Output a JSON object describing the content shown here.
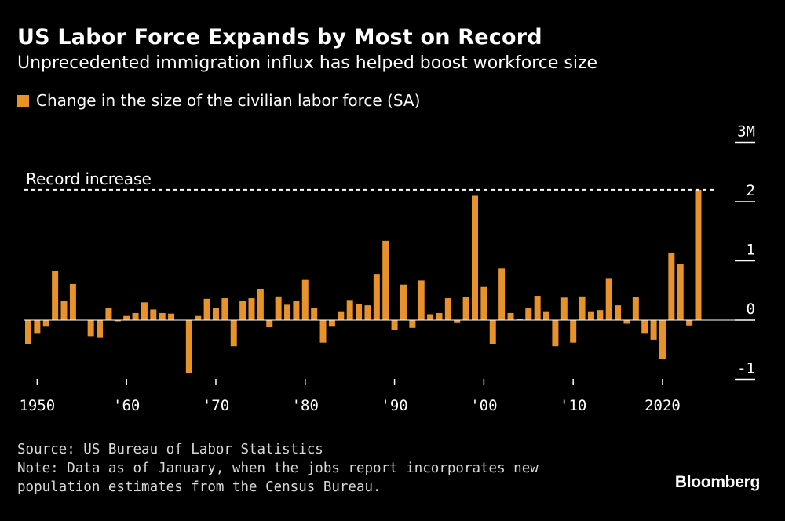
{
  "header": {
    "title": "US Labor Force Expands by Most on Record",
    "subtitle": "Unprecedented immigration influx has helped boost workforce size"
  },
  "legend": {
    "label": "Change in the size of the civilian labor force (SA)",
    "color": "#e8922b"
  },
  "footer": {
    "source": "Source: US Bureau of Labor Statistics",
    "note_line1": "Note: Data as of January, when the jobs report incorporates new",
    "note_line2": "population estimates from the Census Bureau.",
    "logo": "Bloomberg"
  },
  "chart_data": {
    "type": "bar",
    "x": [
      1949,
      1950,
      1951,
      1952,
      1953,
      1954,
      1955,
      1956,
      1957,
      1958,
      1959,
      1960,
      1961,
      1962,
      1963,
      1964,
      1965,
      1966,
      1967,
      1968,
      1969,
      1970,
      1971,
      1972,
      1973,
      1974,
      1975,
      1976,
      1977,
      1978,
      1979,
      1980,
      1981,
      1982,
      1983,
      1984,
      1985,
      1986,
      1987,
      1988,
      1989,
      1990,
      1991,
      1992,
      1993,
      1994,
      1995,
      1996,
      1997,
      1998,
      1999,
      2000,
      2001,
      2002,
      2003,
      2004,
      2005,
      2006,
      2007,
      2008,
      2009,
      2010,
      2011,
      2012,
      2013,
      2014,
      2015,
      2016,
      2017,
      2018,
      2019,
      2020,
      2021,
      2022,
      2023,
      2024,
      2025
    ],
    "values": [
      -0.4,
      -0.23,
      -0.11,
      0.83,
      0.32,
      0.61,
      0.0,
      -0.27,
      -0.3,
      0.2,
      -0.02,
      0.07,
      0.12,
      0.3,
      0.18,
      0.12,
      0.11,
      0.0,
      -0.9,
      0.07,
      0.36,
      0.2,
      0.37,
      -0.44,
      0.33,
      0.37,
      0.53,
      -0.12,
      0.4,
      0.26,
      0.32,
      0.68,
      0.2,
      -0.38,
      -0.11,
      0.15,
      0.34,
      0.27,
      0.25,
      0.78,
      1.34,
      -0.17,
      0.6,
      -0.13,
      0.67,
      0.1,
      0.12,
      0.37,
      -0.05,
      0.39,
      2.1,
      0.56,
      -0.41,
      0.87,
      0.12,
      0.02,
      0.2,
      0.41,
      0.15,
      -0.44,
      0.38,
      -0.38,
      0.4,
      0.15,
      0.17,
      0.71,
      0.25,
      -0.06,
      0.39,
      -0.23,
      -0.33,
      -0.65,
      1.14,
      0.94,
      -0.09,
      2.2,
      0.0
    ],
    "x_ticks": [
      "1950",
      "'60",
      "'70",
      "'80",
      "'90",
      "'00",
      "'10",
      "2020"
    ],
    "x_tick_values": [
      1950,
      1960,
      1970,
      1980,
      1990,
      2000,
      2010,
      2020
    ],
    "y_ticks": [
      "3M",
      "2",
      "1",
      "0",
      "-1"
    ],
    "y_tick_values": [
      3,
      2,
      1,
      0,
      -1
    ],
    "ylim": [
      -1,
      3
    ],
    "units": "million",
    "annotation": {
      "label": "Record increase",
      "value": 2.2
    },
    "grid": false,
    "legend_position": "top-left"
  }
}
